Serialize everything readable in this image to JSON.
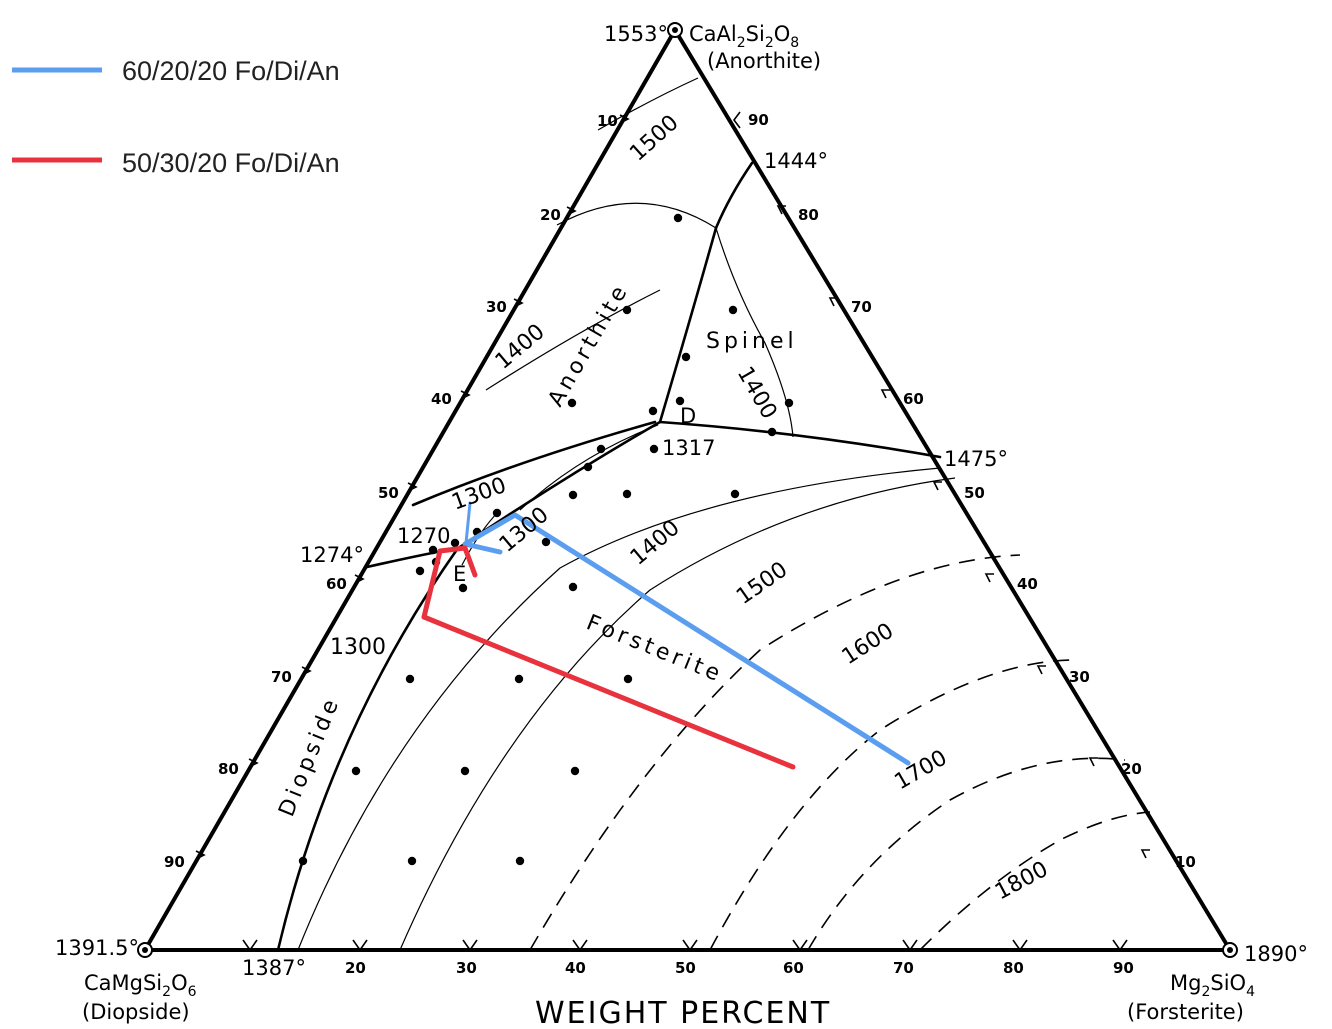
{
  "legend": [
    {
      "label": "60/20/20 Fo/Di/An",
      "color": "#5b9ef0"
    },
    {
      "label": "50/30/20 Fo/Di/An",
      "color": "#e8333e"
    }
  ],
  "vertices": {
    "anorthite": {
      "temp": "1553°",
      "formula_main": "CaAl",
      "formula_sub1": "2",
      "formula_mid": "Si",
      "formula_sub2": "2",
      "formula_end": "O",
      "formula_sub3": "8",
      "name": "(Anorthite)"
    },
    "diopside": {
      "temp": "1391.5°",
      "formula_main": "CaMgSi",
      "formula_sub1": "2",
      "formula_end": "O",
      "formula_sub2": "6",
      "name": "(Diopside)"
    },
    "forsterite": {
      "temp": "1890°",
      "formula_main": "Mg",
      "formula_sub1": "2",
      "formula_end": "SiO",
      "formula_sub2": "4",
      "name": "(Forsterite)"
    }
  },
  "edge_temps": {
    "an_fo_upper": "1444°",
    "an_fo_lower": "1475°",
    "di_an": "1274°",
    "di_fo": "1387°"
  },
  "points": {
    "D": "D",
    "D_temp": "1317",
    "E": "E",
    "E_temp": "1270"
  },
  "fields": {
    "anorthite": "Anorthite",
    "spinel": "Spinel",
    "forsterite": "Forsterite",
    "diopside": "Diopside"
  },
  "isotherms": [
    "1500",
    "1400",
    "1400",
    "1300",
    "1300",
    "1400",
    "1300",
    "1500",
    "1600",
    "1700",
    "1800"
  ],
  "ticks": {
    "bottom": [
      "20",
      "30",
      "40",
      "50",
      "60",
      "70",
      "80",
      "90"
    ],
    "left": [
      "10",
      "20",
      "30",
      "40",
      "50",
      "60",
      "70",
      "80",
      "90"
    ],
    "right": [
      "90",
      "80",
      "70",
      "60",
      "50",
      "40",
      "30",
      "20",
      "10"
    ]
  },
  "axis_title": "WEIGHT PERCENT"
}
